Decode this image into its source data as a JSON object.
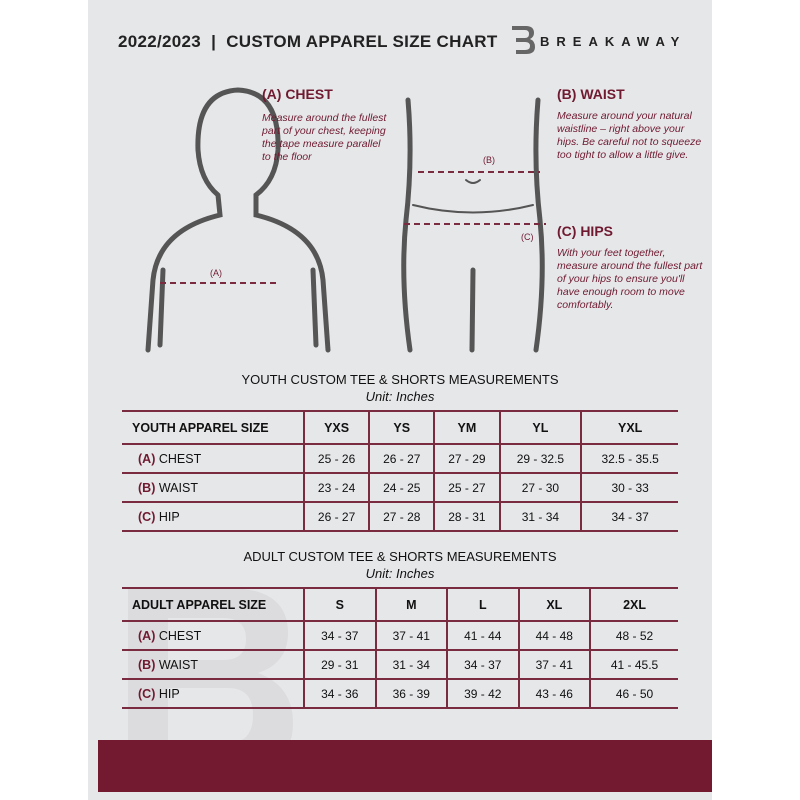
{
  "header": {
    "title": "2022/2023  |  CUSTOM APPAREL SIZE CHART",
    "brand": "BREAKAWAY",
    "logo_letter": "B"
  },
  "guide": {
    "chest": {
      "title": "(A) CHEST",
      "text": "Measure around the fullest part of your chest, keeping the tape measure parallel to the floor",
      "marker": "(A)"
    },
    "waist": {
      "title": "(B) WAIST",
      "text": "Measure around your natural waistline – right above your hips. Be careful not to squeeze too tight to allow a little give.",
      "marker": "(B)"
    },
    "hips": {
      "title": "(C) HIPS",
      "text": "With your feet together, measure around the fullest part of your hips to ensure you'll have enough room to move comfortably.",
      "marker": "(C)"
    }
  },
  "youth": {
    "title": "YOUTH CUSTOM TEE & SHORTS MEASUREMENTS",
    "unit": "Unit: Inches",
    "header": "YOUTH APPAREL SIZE",
    "sizes": [
      "YXS",
      "YS",
      "YM",
      "YL",
      "YXL"
    ],
    "rows": [
      {
        "letter": "(A)",
        "label": "CHEST",
        "values": [
          "25 - 26",
          "26 - 27",
          "27 - 29",
          "29 - 32.5",
          "32.5 - 35.5"
        ]
      },
      {
        "letter": "(B)",
        "label": "WAIST",
        "values": [
          "23 - 24",
          "24 - 25",
          "25 - 27",
          "27 - 30",
          "30 - 33"
        ]
      },
      {
        "letter": "(C)",
        "label": "HIP",
        "values": [
          "26 - 27",
          "27 - 28",
          "28 - 31",
          "31 - 34",
          "34 - 37"
        ]
      }
    ]
  },
  "adult": {
    "title": "ADULT CUSTOM TEE & SHORTS MEASUREMENTS",
    "unit": "Unit: Inches",
    "header": "ADULT APPAREL SIZE",
    "sizes": [
      "S",
      "M",
      "L",
      "XL",
      "2XL"
    ],
    "rows": [
      {
        "letter": "(A)",
        "label": "CHEST",
        "values": [
          "34 - 37",
          "37 - 41",
          "41 - 44",
          "44 - 48",
          "48 - 52"
        ]
      },
      {
        "letter": "(B)",
        "label": "WAIST",
        "values": [
          "29 - 31",
          "31 - 34",
          "34 - 37",
          "37 - 41",
          "41 - 45.5"
        ]
      },
      {
        "letter": "(C)",
        "label": "HIP",
        "values": [
          "34 - 36",
          "36 - 39",
          "39 - 42",
          "43 - 46",
          "46 - 50"
        ]
      }
    ]
  },
  "colors": {
    "accent": "#6f1a30",
    "panel": "#e6e7e9"
  }
}
